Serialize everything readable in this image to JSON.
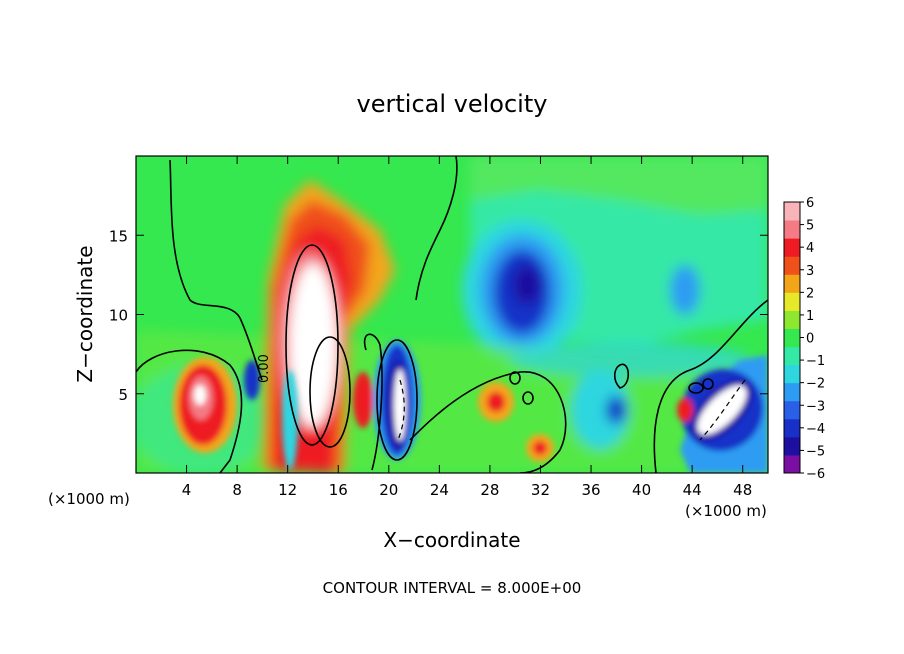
{
  "chart_data": {
    "type": "heatmap",
    "title": "vertical velocity",
    "xlabel": "X−coordinate",
    "ylabel": "Z−coordinate",
    "x_unit_left": "(×1000 m)",
    "x_unit_right": "(×1000 m)",
    "footer": "CONTOUR INTERVAL = 8.000E+00",
    "contour_label": "0.00",
    "xlim": [
      0,
      50
    ],
    "ylim": [
      0,
      20
    ],
    "x_ticks": [
      4,
      8,
      12,
      16,
      20,
      24,
      28,
      32,
      36,
      40,
      44,
      48
    ],
    "y_ticks": [
      5,
      10,
      15
    ],
    "colorbar": {
      "range": [
        -6,
        6
      ],
      "ticks": [
        "6",
        "5",
        "4",
        "3",
        "2",
        "1",
        "0",
        "−1",
        "−2",
        "−3",
        "−4",
        "−5",
        "−6"
      ],
      "colors": [
        "#7b0fa3",
        "#1d0fa0",
        "#1930c8",
        "#2a60e8",
        "#2d9cf2",
        "#2fd6e0",
        "#34e8a6",
        "#35e84f",
        "#8ee830",
        "#e8e82a",
        "#f3a51a",
        "#f0501a",
        "#ee1b23",
        "#f47a85",
        "#f8b4b8"
      ]
    },
    "features": [
      {
        "name": "updraft core",
        "x": 14,
        "z": 9,
        "w_max": "> 6"
      },
      {
        "name": "updraft",
        "x": 5.5,
        "z": 5,
        "w_max": "> 6"
      },
      {
        "name": "downdraft",
        "x": 21,
        "z": 4.5,
        "w_min": "< -6"
      },
      {
        "name": "downdraft aloft",
        "x": 31,
        "z": 11,
        "w_min": "-5"
      },
      {
        "name": "downdraft",
        "x": 46,
        "z": 4,
        "w_min": "< -6"
      },
      {
        "name": "updraft",
        "x": 28.5,
        "z": 4,
        "w_max": "4"
      },
      {
        "name": "updraft",
        "x": 31.5,
        "z": 1.5,
        "w_max": "4"
      }
    ]
  }
}
